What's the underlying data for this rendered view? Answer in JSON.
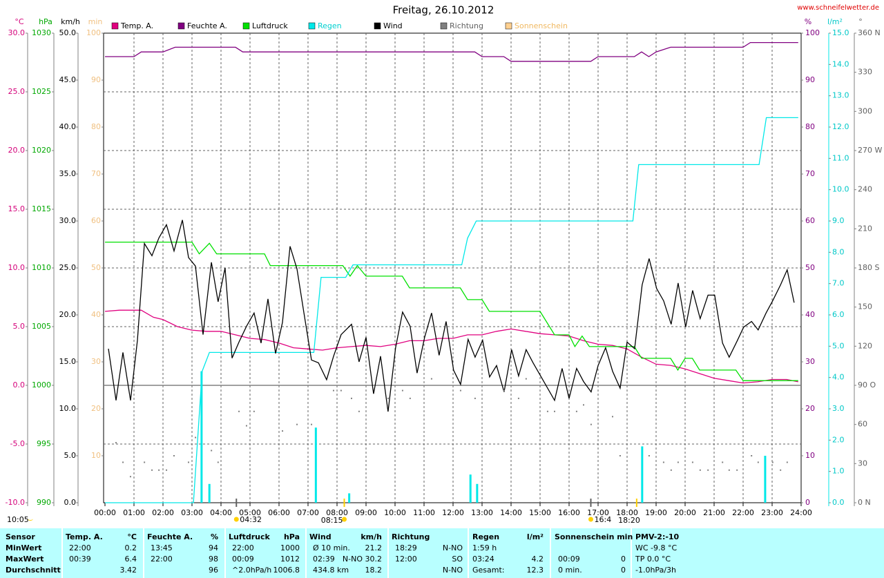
{
  "chart_data": {
    "type": "line",
    "title": "Freitag, 26.10.2012",
    "source": "www.schneifelwetter.de",
    "xlim": [
      0,
      24
    ],
    "xticks": [
      {
        "value": 0,
        "label": "00:00"
      },
      {
        "value": 1,
        "label": "01:00"
      },
      {
        "value": 2,
        "label": "02:00"
      },
      {
        "value": 3,
        "label": "03:00"
      },
      {
        "value": 4,
        "label": "04:00"
      },
      {
        "value": 5,
        "label": "05:00"
      },
      {
        "value": 6,
        "label": "06:00"
      },
      {
        "value": 7,
        "label": "07:00"
      },
      {
        "value": 8,
        "label": "08:00"
      },
      {
        "value": 9,
        "label": "09:00"
      },
      {
        "value": 10,
        "label": "10:00"
      },
      {
        "value": 11,
        "label": "11:00"
      },
      {
        "value": 12,
        "label": "12:00"
      },
      {
        "value": 13,
        "label": "13:00"
      },
      {
        "value": 14,
        "label": "14:00"
      },
      {
        "value": 15,
        "label": "15:00"
      },
      {
        "value": 16,
        "label": "16:00"
      },
      {
        "value": 17,
        "label": "17:00"
      },
      {
        "value": 18,
        "label": "18:00"
      },
      {
        "value": 19,
        "label": "19:00"
      },
      {
        "value": 20,
        "label": "20:00"
      },
      {
        "value": 21,
        "label": "21:00"
      },
      {
        "value": 22,
        "label": "22:00"
      },
      {
        "value": 23,
        "label": "23:00"
      },
      {
        "value": 24,
        "label": "24:00"
      }
    ],
    "grid": true,
    "axes": [
      {
        "unit": "°C",
        "color": "#d4007a",
        "side": "left",
        "lim": [
          -10,
          30
        ],
        "ticks": [
          {
            "value": -10,
            "label": "-10.0"
          },
          {
            "value": -5,
            "label": "-5.0"
          },
          {
            "value": 0,
            "label": "0.0"
          },
          {
            "value": 5,
            "label": "5.0"
          },
          {
            "value": 10,
            "label": "10.0"
          },
          {
            "value": 15,
            "label": "15.0"
          },
          {
            "value": 20,
            "label": "20.0"
          },
          {
            "value": 25,
            "label": "25.0"
          },
          {
            "value": 30,
            "label": "30.0"
          }
        ]
      },
      {
        "unit": "hPa",
        "color": "#00a800",
        "side": "left",
        "lim": [
          990,
          1030
        ],
        "ticks": [
          990,
          995,
          1000,
          1005,
          1010,
          1015,
          1020,
          1025,
          1030
        ]
      },
      {
        "unit": "km/h",
        "color": "#000000",
        "side": "left",
        "lim": [
          0,
          50
        ],
        "ticks": [
          {
            "value": 0,
            "label": "0.0"
          },
          {
            "value": 5,
            "label": "5.0"
          },
          {
            "value": 10,
            "label": "10.0"
          },
          {
            "value": 15,
            "label": "15.0"
          },
          {
            "value": 20,
            "label": "20.0"
          },
          {
            "value": 25,
            "label": "25.0"
          },
          {
            "value": 30,
            "label": "30.0"
          },
          {
            "value": 35,
            "label": "35.0"
          },
          {
            "value": 40,
            "label": "40.0"
          },
          {
            "value": 45,
            "label": "45.0"
          },
          {
            "value": 50,
            "label": "50.0"
          }
        ]
      },
      {
        "unit": "min",
        "color": "#f0c080",
        "side": "left",
        "lim": [
          0,
          100
        ],
        "ticks": [
          10,
          20,
          30,
          40,
          50,
          60,
          70,
          80,
          90,
          100
        ]
      },
      {
        "unit": "%",
        "color": "#800080",
        "side": "right",
        "lim": [
          0,
          100
        ],
        "ticks": [
          0,
          10,
          20,
          30,
          40,
          50,
          60,
          70,
          80,
          90,
          100
        ]
      },
      {
        "unit": "l/m²",
        "color": "#00c8c8",
        "side": "right",
        "lim": [
          0,
          15
        ],
        "ticks": [
          {
            "value": 0,
            "label": "0.0"
          },
          {
            "value": 1,
            "label": "1.0"
          },
          {
            "value": 2,
            "label": "2.0"
          },
          {
            "value": 3,
            "label": "3.0"
          },
          {
            "value": 4,
            "label": "4.0"
          },
          {
            "value": 5,
            "label": "5.0"
          },
          {
            "value": 6,
            "label": "6.0"
          },
          {
            "value": 7,
            "label": "7.0"
          },
          {
            "value": 8,
            "label": "8.0"
          },
          {
            "value": 9,
            "label": "9.0"
          },
          {
            "value": 10,
            "label": "10.0"
          },
          {
            "value": 11,
            "label": "11.0"
          },
          {
            "value": 12,
            "label": "12.0"
          },
          {
            "value": 13,
            "label": "13.0"
          },
          {
            "value": 14,
            "label": "14.0"
          },
          {
            "value": 15,
            "label": "15.0"
          }
        ]
      },
      {
        "unit": "°",
        "color": "#606060",
        "side": "right",
        "lim": [
          0,
          360
        ],
        "ticks": [
          {
            "value": 0,
            "label": "0 N"
          },
          30,
          60,
          {
            "value": 90,
            "label": "90 O"
          },
          120,
          150,
          {
            "value": 180,
            "label": "180 S"
          },
          210,
          240,
          {
            "value": 270,
            "label": "270 W"
          },
          300,
          330,
          {
            "value": 360,
            "label": "360 N"
          }
        ]
      }
    ],
    "series": [
      {
        "name": "Temp. A.",
        "color": "#e0007f",
        "axis": 0,
        "style": "line",
        "x": [
          0,
          0.5,
          1.25,
          1.67,
          2,
          2.5,
          3,
          3.5,
          4,
          4.5,
          5,
          5.5,
          6,
          6.5,
          7,
          7.5,
          8,
          8.5,
          9,
          9.5,
          10,
          10.5,
          11,
          11.5,
          12,
          12.5,
          13,
          13.5,
          14,
          14.5,
          15,
          15.5,
          16,
          16.5,
          17,
          17.5,
          18,
          18.5,
          19,
          19.5,
          20,
          20.5,
          21,
          21.5,
          22,
          22.5,
          23,
          23.5,
          23.9
        ],
        "values": [
          6.3,
          6.4,
          6.4,
          5.8,
          5.6,
          5.0,
          4.7,
          4.6,
          4.6,
          4.3,
          4.0,
          3.9,
          3.6,
          3.2,
          3.1,
          3.0,
          3.2,
          3.3,
          3.4,
          3.3,
          3.5,
          3.8,
          3.8,
          4.0,
          4.0,
          4.3,
          4.3,
          4.6,
          4.8,
          4.6,
          4.4,
          4.3,
          4.2,
          3.8,
          3.5,
          3.4,
          3.1,
          2.4,
          1.8,
          1.7,
          1.4,
          1.0,
          0.6,
          0.4,
          0.2,
          0.3,
          0.5,
          0.5,
          0.3
        ]
      },
      {
        "name": "Feuchte A.",
        "color": "#800080",
        "axis": 4,
        "style": "line",
        "x": [
          0,
          1,
          1.25,
          2,
          2.42,
          4.5,
          4.75,
          12.75,
          13,
          13.75,
          14,
          16.75,
          17,
          18.25,
          18.5,
          18.75,
          19,
          19.5,
          22,
          22.25,
          23.9
        ],
        "values": [
          95,
          95,
          96,
          96,
          97,
          97,
          96,
          96,
          95,
          95,
          94,
          94,
          95,
          95,
          96,
          95,
          96,
          97,
          97,
          98,
          98
        ]
      },
      {
        "name": "Luftdruck",
        "color": "#00e000",
        "axis": 1,
        "style": "line",
        "x": [
          0,
          3,
          3.25,
          3.6,
          3.85,
          5.5,
          5.7,
          8.2,
          8.45,
          8.7,
          9.0,
          10.25,
          10.5,
          12.25,
          12.5,
          13.0,
          13.25,
          15.0,
          15.25,
          15.5,
          16.0,
          16.2,
          16.45,
          16.7,
          18.25,
          18.5,
          19.5,
          19.75,
          20.0,
          20.25,
          20.5,
          21.75,
          22.0,
          23.9
        ],
        "values": [
          1012.2,
          1012.2,
          1011.2,
          1012.1,
          1011.2,
          1011.2,
          1010.2,
          1010.2,
          1009.3,
          1010.2,
          1009.3,
          1009.3,
          1008.3,
          1008.3,
          1007.3,
          1007.3,
          1006.3,
          1006.3,
          1005.3,
          1004.3,
          1004.3,
          1003.3,
          1004.2,
          1003.3,
          1003.3,
          1002.3,
          1002.3,
          1001.3,
          1002.3,
          1002.3,
          1001.3,
          1001.3,
          1000.4,
          1000.4
        ]
      },
      {
        "name": "Regen",
        "color": "#00e8e8",
        "axis": 5,
        "style": "line",
        "x": [
          0,
          3.05,
          3.35,
          3.6,
          7.2,
          7.45,
          8.3,
          8.55,
          12.3,
          12.5,
          12.8,
          18.2,
          18.4,
          22.55,
          22.8,
          23.9
        ],
        "values": [
          0,
          0,
          4.2,
          4.8,
          4.8,
          7.2,
          7.2,
          7.6,
          7.6,
          8.45,
          9.0,
          9.0,
          10.8,
          10.8,
          12.3,
          12.3
        ],
        "bars_x": [
          3.33,
          3.6,
          7.27,
          8.42,
          12.6,
          12.83,
          18.52,
          22.76
        ],
        "bars": [
          4.2,
          0.6,
          2.4,
          0.3,
          0.9,
          0.6,
          1.8,
          1.5
        ]
      },
      {
        "name": "Wind",
        "color": "#000000",
        "axis": 2,
        "style": "line",
        "x": [
          0.12,
          0.38,
          0.62,
          0.88,
          1.12,
          1.36,
          1.62,
          1.86,
          2.12,
          2.38,
          2.67,
          2.88,
          3.12,
          3.38,
          3.67,
          3.9,
          4.14,
          4.38,
          4.62,
          4.88,
          5.14,
          5.38,
          5.62,
          5.88,
          6.12,
          6.38,
          6.62,
          6.86,
          7.12,
          7.36,
          7.64,
          7.88,
          8.14,
          8.5,
          8.76,
          9.0,
          9.26,
          9.5,
          9.76,
          10.02,
          10.26,
          10.52,
          10.76,
          11.02,
          11.26,
          11.52,
          11.76,
          12.02,
          12.26,
          12.52,
          12.76,
          13.02,
          13.26,
          13.5,
          13.76,
          14.02,
          14.26,
          14.52,
          14.76,
          15.02,
          15.5,
          15.76,
          16.0,
          16.26,
          16.5,
          16.76,
          17.0,
          17.26,
          17.5,
          17.76,
          18.0,
          18.26,
          18.52,
          18.76,
          19.02,
          19.26,
          19.52,
          19.76,
          20.02,
          20.26,
          20.52,
          20.79,
          21.02,
          21.29,
          21.52,
          21.79,
          22.02,
          22.29,
          22.52,
          22.79,
          23.02,
          23.29,
          23.52,
          23.76
        ],
        "values": [
          16.4,
          10.9,
          16.0,
          10.9,
          17.3,
          27.6,
          26.3,
          28.2,
          29.6,
          26.8,
          30.1,
          26.1,
          25.2,
          17.9,
          25.6,
          21.4,
          25.0,
          15.4,
          17.1,
          18.8,
          20.2,
          17.0,
          21.7,
          15.9,
          19.2,
          27.3,
          24.9,
          20.2,
          15.2,
          14.9,
          13.1,
          15.6,
          17.9,
          19.0,
          15.0,
          17.6,
          11.6,
          15.6,
          9.7,
          16.5,
          20.3,
          18.8,
          13.8,
          17.6,
          20.2,
          15.7,
          19.3,
          14.1,
          12.6,
          17.4,
          15.5,
          17.3,
          13.4,
          14.6,
          11.8,
          16.3,
          13.5,
          16.3,
          14.9,
          13.5,
          10.9,
          14.3,
          11.1,
          14.3,
          12.9,
          11.8,
          14.6,
          16.5,
          14.0,
          12.2,
          17.1,
          16.4,
          23.2,
          26.0,
          22.8,
          21.5,
          19.0,
          23.4,
          18.7,
          22.6,
          19.6,
          22.1,
          22.1,
          17.0,
          15.5,
          17.2,
          18.7,
          19.3,
          18.4,
          20.2,
          21.5,
          23.2,
          24.8,
          21.3
        ]
      },
      {
        "name": "Richtung",
        "color": "#808080",
        "axis": 6,
        "style": "dots",
        "x": [
          0.38,
          0.62,
          0.88,
          1.36,
          1.62,
          1.86,
          2.12,
          2.38,
          2.88,
          3.12,
          3.67,
          3.9,
          4.62,
          4.88,
          5.14,
          6.12,
          6.62,
          7.12,
          7.88,
          8.14,
          8.5,
          8.76,
          9.76,
          10.26,
          10.52,
          11.26,
          12.26,
          12.76,
          13.76,
          14.26,
          14.52,
          15.26,
          15.5,
          16.26,
          16.5,
          16.76,
          17.5,
          17.76,
          18.76,
          19.26,
          19.52,
          19.76,
          20.26,
          20.52,
          20.79,
          21.29,
          21.52,
          21.79,
          22.29,
          22.52,
          23.02,
          23.29,
          23.52
        ],
        "values": [
          46,
          31,
          20,
          31,
          25,
          25,
          25,
          36,
          31,
          50,
          40,
          31,
          70,
          59,
          70,
          55,
          60,
          60,
          86,
          86,
          80,
          70,
          80,
          86,
          80,
          95,
          86,
          80,
          86,
          80,
          95,
          70,
          70,
          70,
          75,
          60,
          66,
          36,
          36,
          31,
          25,
          31,
          31,
          25,
          25,
          31,
          25,
          25,
          36,
          31,
          31,
          25,
          31
        ]
      },
      {
        "name": "Sonnenschein",
        "color": "#ffd090",
        "axis": 3,
        "style": "line",
        "x": [],
        "values": []
      }
    ],
    "annotations": [
      {
        "label": "10:05",
        "x": null,
        "icon": "moon"
      },
      {
        "label": "04:32",
        "x": 4.53,
        "icon": "sun"
      },
      {
        "label": "08:15",
        "x": 8.25,
        "icon": "sun"
      },
      {
        "label": "16:4",
        "x": 16.75,
        "icon": "sun"
      },
      {
        "label": "18:20",
        "x": 18.33,
        "icon": "none"
      }
    ]
  },
  "table": {
    "header": [
      "Sensor",
      "Temp. A.",
      "°C",
      "Feuchte A.",
      "%",
      "Luftdruck",
      "hPa",
      "Wind",
      "km/h",
      "Richtung",
      null,
      "Regen",
      "l/m²",
      "Sonnenschein min",
      null,
      "PMV-2:-10"
    ],
    "rows": [
      [
        "MinWert",
        "22:00",
        "0.2",
        "13:45",
        "94",
        "22:00",
        "1000",
        "Ø 10 min.",
        "21.2",
        "18:29",
        "N-NO",
        "1:59 h",
        null,
        null,
        null,
        "WC -9.8 °C"
      ],
      [
        "MaxWert",
        "00:39",
        "6.4",
        "22:00",
        "98",
        "00:09",
        "1012",
        "02:39",
        "N-NO 30.2",
        "12:00",
        "SO",
        "03:24",
        "4.2",
        "00:09",
        "0",
        "TP 0.0 °C"
      ],
      [
        "Durchschnitt",
        null,
        "3.42",
        null,
        "96",
        "^2.0hPa/h",
        "1006.8",
        "434.8 km",
        "18.2",
        null,
        "N-NO",
        "Gesamt:",
        "12.3",
        "0 min.",
        "0",
        "-1.0hPa/3h"
      ]
    ]
  }
}
